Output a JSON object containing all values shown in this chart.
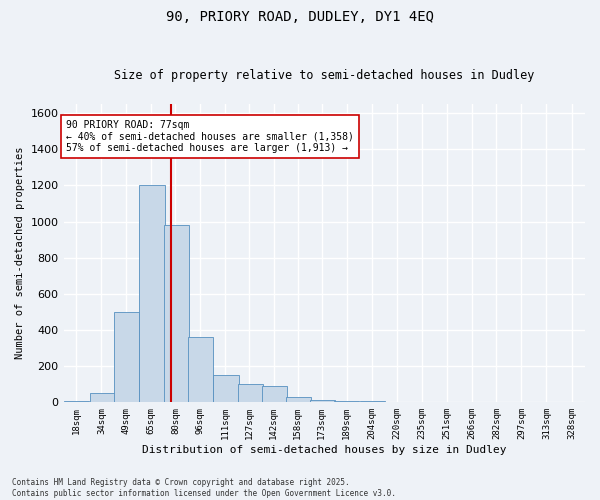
{
  "title_line1": "90, PRIORY ROAD, DUDLEY, DY1 4EQ",
  "title_line2": "Size of property relative to semi-detached houses in Dudley",
  "xlabel": "Distribution of semi-detached houses by size in Dudley",
  "ylabel": "Number of semi-detached properties",
  "footer_line1": "Contains HM Land Registry data © Crown copyright and database right 2025.",
  "footer_line2": "Contains public sector information licensed under the Open Government Licence v3.0.",
  "annotation_line1": "90 PRIORY ROAD: 77sqm",
  "annotation_line2": "← 40% of semi-detached houses are smaller (1,358)",
  "annotation_line3": "57% of semi-detached houses are larger (1,913) →",
  "property_size": 77,
  "bar_color": "#c8d8e8",
  "bar_edge_color": "#5590c0",
  "vline_color": "#cc0000",
  "background_color": "#eef2f7",
  "grid_color": "#ffffff",
  "categories": [
    "18sqm",
    "34sqm",
    "49sqm",
    "65sqm",
    "80sqm",
    "96sqm",
    "111sqm",
    "127sqm",
    "142sqm",
    "158sqm",
    "173sqm",
    "189sqm",
    "204sqm",
    "220sqm",
    "235sqm",
    "251sqm",
    "266sqm",
    "282sqm",
    "297sqm",
    "313sqm",
    "328sqm"
  ],
  "bin_edges": [
    10.5,
    26.5,
    41.5,
    57.5,
    72.5,
    87.5,
    103.5,
    118.5,
    133.5,
    148.5,
    163.5,
    178.5,
    194.5,
    209.5,
    225.5,
    240.5,
    256.5,
    271.5,
    287.5,
    302.5,
    318.5,
    334.5
  ],
  "values": [
    5,
    50,
    500,
    1200,
    980,
    360,
    150,
    100,
    90,
    30,
    15,
    8,
    5,
    3,
    2,
    1,
    1,
    1,
    0,
    0,
    0
  ],
  "ylim": [
    0,
    1650
  ],
  "yticks": [
    0,
    200,
    400,
    600,
    800,
    1000,
    1200,
    1400,
    1600
  ]
}
